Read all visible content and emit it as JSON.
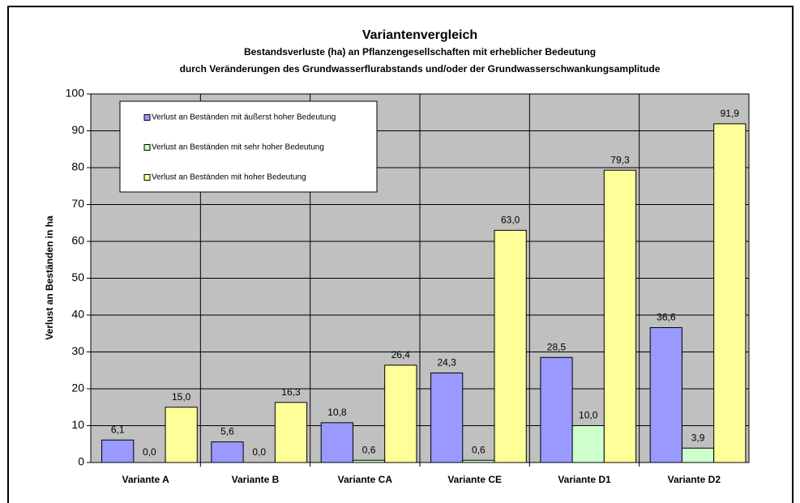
{
  "chart_data": {
    "type": "bar",
    "title": "Variantenvergleich",
    "subtitle": [
      "Bestandsverluste (ha) an Pflanzengesellschaften mit erheblicher Bedeutung",
      "durch Veränderungen des Grundwasserflurabstands und/oder der Grundwasserschwankungsamplitude"
    ],
    "y_label": "Verlust an Beständen in ha",
    "categories": [
      "Variante  A",
      "Variante B",
      "Variante CA",
      "Variante CE",
      "Variante D1",
      "Variante D2"
    ],
    "series": [
      {
        "name": "Verlust an Beständen mit äußerst hoher Bedeutung",
        "color": "#9999ff",
        "values": [
          6.1,
          5.6,
          10.8,
          24.3,
          28.5,
          36.6
        ],
        "value_labels": [
          "6,1",
          "5,6",
          "10,8",
          "24,3",
          "28,5",
          "36,6"
        ]
      },
      {
        "name": "Verlust an Beständen mit sehr hoher Bedeutung",
        "color": "#ccffcc",
        "values": [
          0.0,
          0.0,
          0.6,
          0.6,
          10.0,
          3.9
        ],
        "value_labels": [
          "0,0",
          "0,0",
          "0,6",
          "0,6",
          "10,0",
          "3,9"
        ]
      },
      {
        "name": "Verlust an Beständen mit hoher Bedeutung",
        "color": "#ffff99",
        "values": [
          15.0,
          16.3,
          26.4,
          63.0,
          79.3,
          91.9
        ],
        "value_labels": [
          "15,0",
          "16,3",
          "26,4",
          "63,0",
          "79,3",
          "91,9"
        ]
      }
    ],
    "ylim": [
      0,
      100
    ],
    "yticks": [
      0,
      10,
      20,
      30,
      40,
      50,
      60,
      70,
      80,
      90,
      100
    ],
    "grid": true,
    "plot_background": "#c0c0c0",
    "legend": "upper left"
  }
}
